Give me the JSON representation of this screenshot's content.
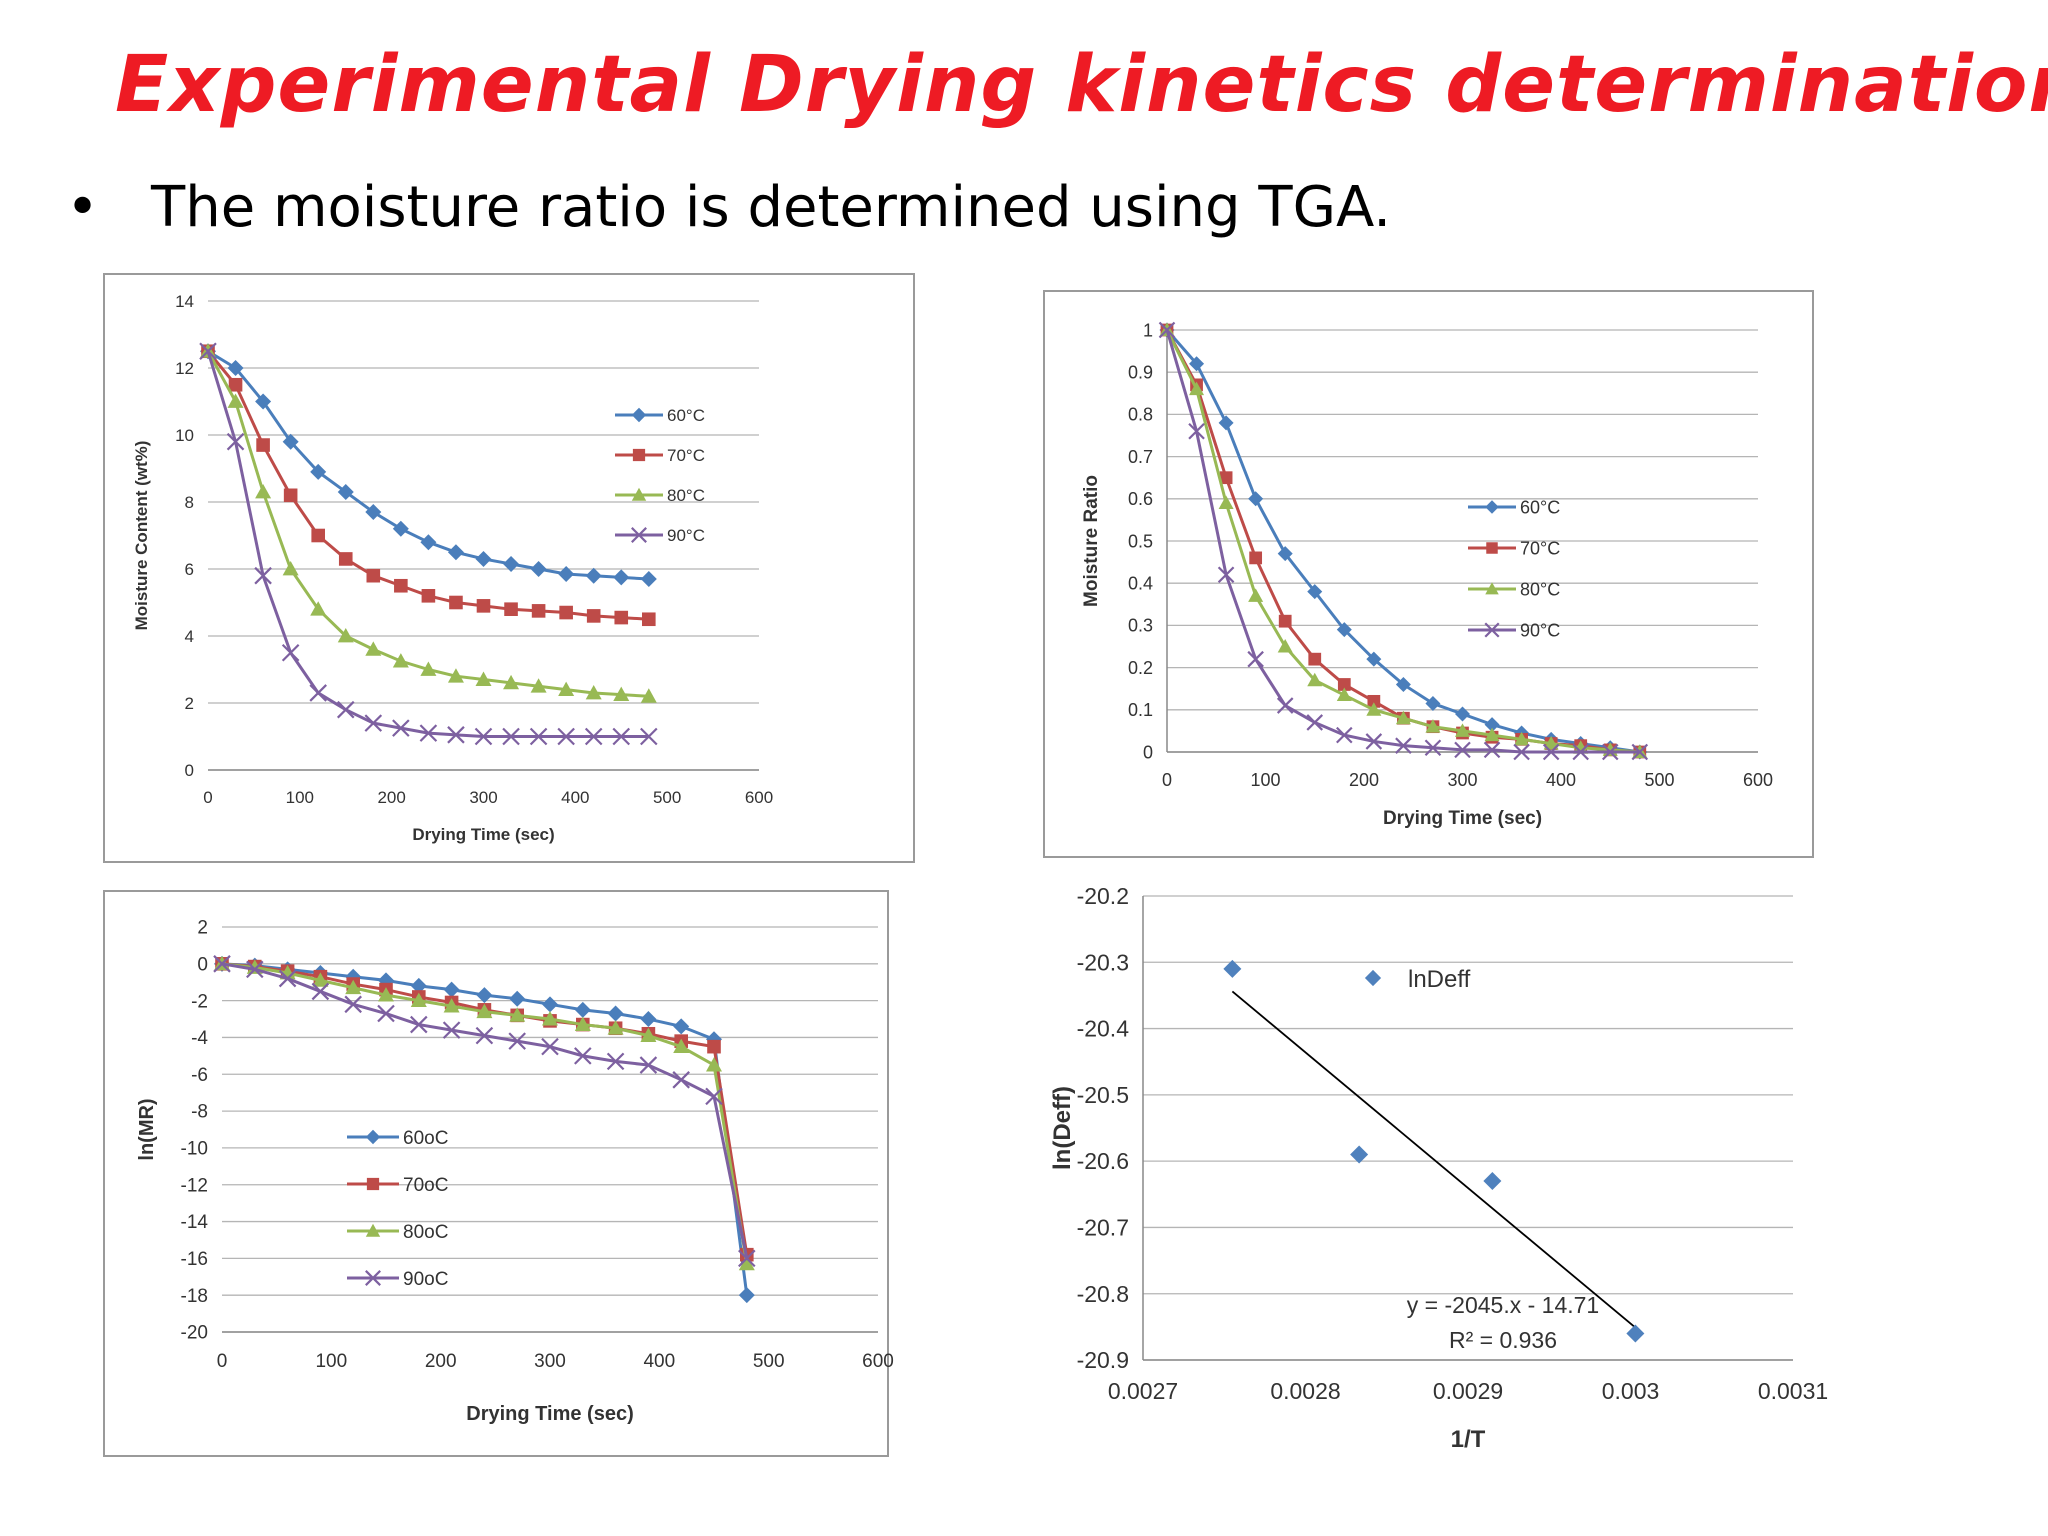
{
  "slide": {
    "title": "Experimental Drying kinetics determination",
    "bullet": "The moisture ratio is determined using TGA."
  },
  "chart_data": [
    {
      "id": "moisture-content",
      "type": "line",
      "xlabel": "Drying Time (sec)",
      "ylabel": "Moisture Content (wt%)",
      "xlim": [
        0,
        600
      ],
      "xticks": [
        0,
        100,
        200,
        300,
        400,
        500,
        600
      ],
      "ylim": [
        0,
        14
      ],
      "yticks": [
        0,
        2,
        4,
        6,
        8,
        10,
        12,
        14
      ],
      "grid": true,
      "legend": "middle-right",
      "x": [
        0,
        30,
        60,
        90,
        120,
        150,
        180,
        210,
        240,
        270,
        300,
        330,
        360,
        390,
        420,
        450,
        480
      ],
      "series": [
        {
          "name": "60°C",
          "color": "#4a7ebb",
          "marker": "diamond",
          "values": [
            12.5,
            12.0,
            11.0,
            9.8,
            8.9,
            8.3,
            7.7,
            7.2,
            6.8,
            6.5,
            6.3,
            6.15,
            6.0,
            5.85,
            5.8,
            5.75,
            5.7
          ]
        },
        {
          "name": "70°C",
          "color": "#be4b48",
          "marker": "square",
          "values": [
            12.5,
            11.5,
            9.7,
            8.2,
            7.0,
            6.3,
            5.8,
            5.5,
            5.2,
            5.0,
            4.9,
            4.8,
            4.75,
            4.7,
            4.6,
            4.55,
            4.5
          ]
        },
        {
          "name": "80°C",
          "color": "#98b954",
          "marker": "triangle",
          "values": [
            12.5,
            11.0,
            8.3,
            6.0,
            4.8,
            4.0,
            3.6,
            3.25,
            3.0,
            2.8,
            2.7,
            2.6,
            2.5,
            2.4,
            2.3,
            2.25,
            2.2
          ]
        },
        {
          "name": "90°C",
          "color": "#7d60a0",
          "marker": "x",
          "values": [
            12.5,
            9.8,
            5.8,
            3.5,
            2.3,
            1.8,
            1.4,
            1.25,
            1.1,
            1.05,
            1.0,
            1.0,
            1.0,
            1.0,
            1.0,
            1.0,
            1.0
          ]
        }
      ]
    },
    {
      "id": "moisture-ratio",
      "type": "line",
      "xlabel": "Drying Time (sec)",
      "ylabel": "Moisture Ratio",
      "xlim": [
        0,
        600
      ],
      "xticks": [
        0,
        100,
        200,
        300,
        400,
        500,
        600
      ],
      "ylim": [
        0,
        1
      ],
      "yticks": [
        0,
        0.1,
        0.2,
        0.3,
        0.4,
        0.5,
        0.6,
        0.7,
        0.8,
        0.9,
        1
      ],
      "grid": true,
      "legend": "middle-right",
      "x": [
        0,
        30,
        60,
        90,
        120,
        150,
        180,
        210,
        240,
        270,
        300,
        330,
        360,
        390,
        420,
        450,
        480
      ],
      "series": [
        {
          "name": "60°C",
          "color": "#4a7ebb",
          "marker": "diamond",
          "values": [
            1.0,
            0.92,
            0.78,
            0.6,
            0.47,
            0.38,
            0.29,
            0.22,
            0.16,
            0.115,
            0.09,
            0.065,
            0.045,
            0.03,
            0.02,
            0.01,
            0.0
          ]
        },
        {
          "name": "70°C",
          "color": "#be4b48",
          "marker": "square",
          "values": [
            1.0,
            0.87,
            0.65,
            0.46,
            0.31,
            0.22,
            0.16,
            0.12,
            0.08,
            0.06,
            0.045,
            0.035,
            0.03,
            0.02,
            0.015,
            0.005,
            0.0
          ]
        },
        {
          "name": "80°C",
          "color": "#98b954",
          "marker": "triangle",
          "values": [
            1.0,
            0.86,
            0.59,
            0.37,
            0.25,
            0.17,
            0.135,
            0.1,
            0.08,
            0.06,
            0.05,
            0.04,
            0.03,
            0.02,
            0.01,
            0.005,
            0.0
          ]
        },
        {
          "name": "90°C",
          "color": "#7d60a0",
          "marker": "x",
          "values": [
            1.0,
            0.76,
            0.42,
            0.22,
            0.11,
            0.07,
            0.04,
            0.025,
            0.015,
            0.01,
            0.005,
            0.005,
            0.0,
            0.0,
            0.0,
            0.0,
            0.0
          ]
        }
      ]
    },
    {
      "id": "ln-mr",
      "type": "line",
      "xlabel": "Drying Time (sec)",
      "ylabel": "ln(MR)",
      "xlim": [
        0,
        600
      ],
      "xticks": [
        0,
        100,
        200,
        300,
        400,
        500,
        600
      ],
      "ylim": [
        -20,
        2
      ],
      "yticks": [
        -20,
        -18,
        -16,
        -14,
        -12,
        -10,
        -8,
        -6,
        -4,
        -2,
        0,
        2
      ],
      "grid": true,
      "legend": "middle-left",
      "x": [
        0,
        30,
        60,
        90,
        120,
        150,
        180,
        210,
        240,
        270,
        300,
        330,
        360,
        390,
        420,
        450,
        480
      ],
      "series": [
        {
          "name": "60oC",
          "color": "#4a7ebb",
          "marker": "diamond",
          "values": [
            0,
            -0.1,
            -0.3,
            -0.5,
            -0.7,
            -0.9,
            -1.2,
            -1.4,
            -1.7,
            -1.9,
            -2.2,
            -2.5,
            -2.7,
            -3.0,
            -3.4,
            -4.1,
            -18.0
          ]
        },
        {
          "name": "70oC",
          "color": "#be4b48",
          "marker": "square",
          "values": [
            0,
            -0.15,
            -0.4,
            -0.7,
            -1.1,
            -1.4,
            -1.8,
            -2.1,
            -2.5,
            -2.8,
            -3.1,
            -3.3,
            -3.5,
            -3.8,
            -4.2,
            -4.5,
            -15.8
          ]
        },
        {
          "name": "80oC",
          "color": "#98b954",
          "marker": "triangle",
          "values": [
            0,
            -0.2,
            -0.5,
            -0.9,
            -1.3,
            -1.7,
            -2.0,
            -2.3,
            -2.6,
            -2.8,
            -3.0,
            -3.3,
            -3.5,
            -3.9,
            -4.5,
            -5.5,
            -16.3
          ]
        },
        {
          "name": "90oC",
          "color": "#7d60a0",
          "marker": "x",
          "values": [
            0,
            -0.3,
            -0.8,
            -1.5,
            -2.2,
            -2.7,
            -3.3,
            -3.6,
            -3.9,
            -4.2,
            -4.5,
            -5.0,
            -5.3,
            -5.5,
            -6.3,
            -7.2,
            -16.0
          ]
        }
      ]
    },
    {
      "id": "ln-deff",
      "type": "scatter",
      "xlabel": "1/T",
      "ylabel": "ln(Deff)",
      "xlim": [
        0.0027,
        0.0031
      ],
      "xticks": [
        0.0027,
        0.0028,
        0.0029,
        0.003,
        0.0031
      ],
      "ylim": [
        -20.9,
        -20.2
      ],
      "yticks": [
        -20.9,
        -20.8,
        -20.7,
        -20.6,
        -20.5,
        -20.4,
        -20.3,
        -20.2
      ],
      "grid": true,
      "legend": "top-center",
      "series": [
        {
          "name": "lnDeff",
          "color": "#4f81bd",
          "marker": "diamond",
          "points": [
            [
              0.002755,
              -20.31
            ],
            [
              0.002833,
              -20.59
            ],
            [
              0.002915,
              -20.63
            ],
            [
              0.003003,
              -20.86
            ]
          ]
        }
      ],
      "trendline": {
        "slope": -2045,
        "intercept": -14.71,
        "x_from": 0.002755,
        "x_to": 0.003003
      },
      "equation": "y = -2045.x - 14.71",
      "r_squared": "R² = 0.936"
    }
  ]
}
